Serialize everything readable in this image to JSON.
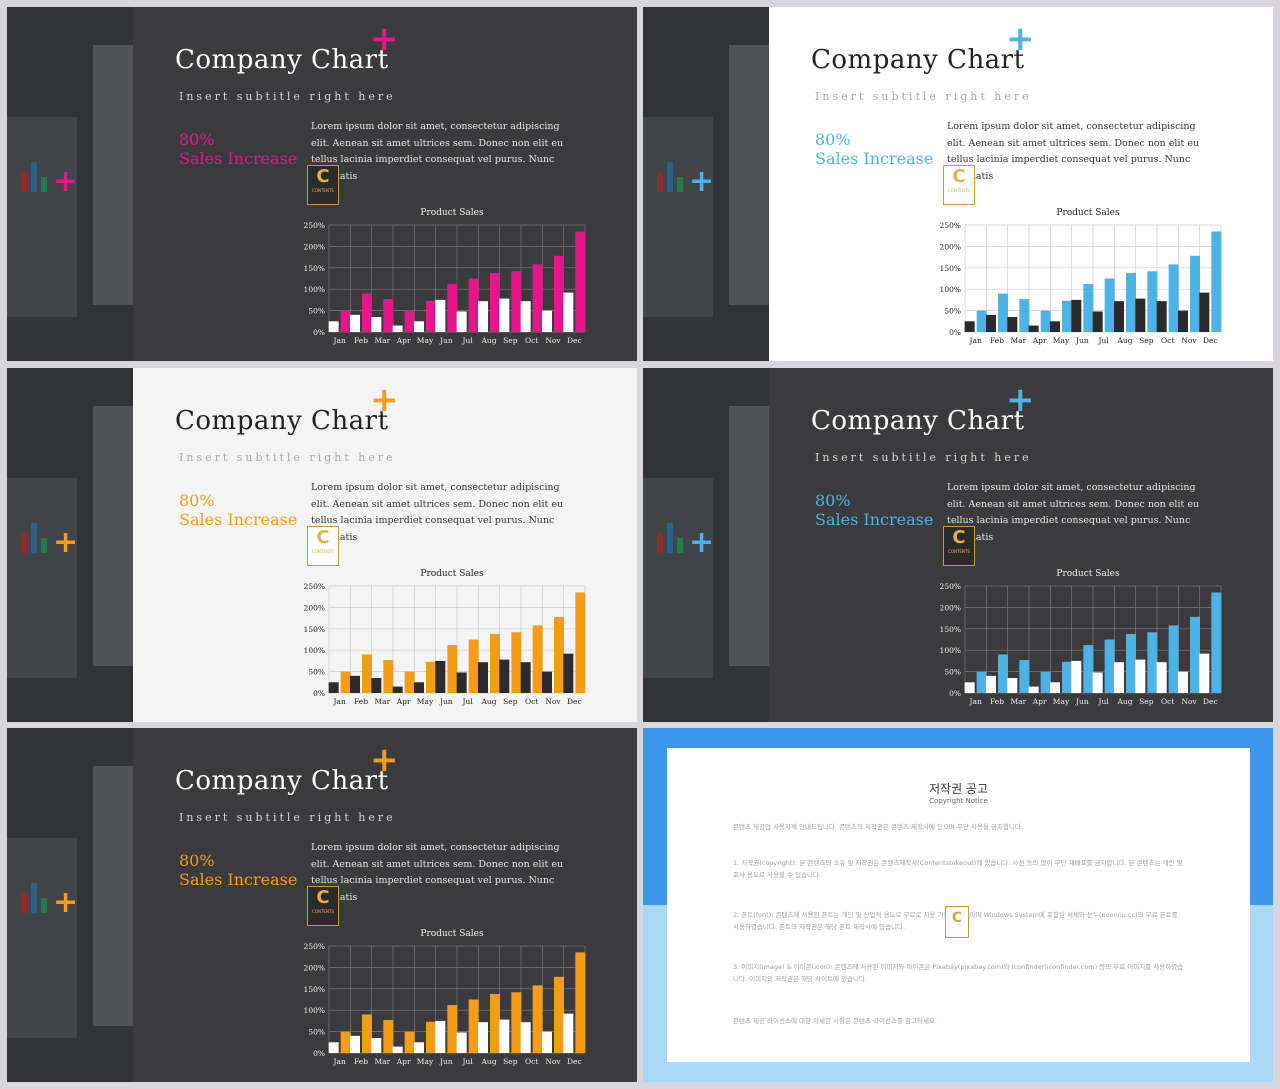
{
  "slides": [
    {
      "theme": "dark",
      "accent": "#e5168a",
      "title": "Company Chart",
      "subtitle": "Insert subtitle right here",
      "stat_value": "80%",
      "stat_label": "Sales Increase",
      "body": "Lorem ipsum dolor sit amet, consectetur adipiscing elit. Aenean sit amet ultrices sem. Donec non elit eu tellus lacinia imperdiet consequat vel purus. Nunc venenatis",
      "logo_letter": "C",
      "logo_text": "CONTENTS"
    },
    {
      "theme": "white",
      "accent": "#4db3e6",
      "title": "Company Chart",
      "subtitle": "Insert subtitle right here",
      "stat_value": "80%",
      "stat_label": "Sales Increase",
      "body": "Lorem ipsum dolor sit amet, consectetur adipiscing elit. Aenean sit amet ultrices sem. Donec non elit eu tellus lacinia imperdiet consequat vel purus. Nunc venenatis",
      "logo_letter": "C",
      "logo_text": "CONTENTS"
    },
    {
      "theme": "offwhite",
      "accent": "#f39c1a",
      "title": "Company Chart",
      "subtitle": "Insert subtitle right here",
      "stat_value": "80%",
      "stat_label": "Sales Increase",
      "body": "Lorem ipsum dolor sit amet, consectetur adipiscing elit. Aenean sit amet ultrices sem. Donec non elit eu tellus lacinia imperdiet consequat vel purus. Nunc venenatis",
      "logo_letter": "C",
      "logo_text": "CONTENTS"
    },
    {
      "theme": "dark",
      "accent": "#4db3e6",
      "title": "Company Chart",
      "subtitle": "Insert subtitle right here",
      "stat_value": "80%",
      "stat_label": "Sales Increase",
      "body": "Lorem ipsum dolor sit amet, consectetur adipiscing elit. Aenean sit amet ultrices sem. Donec non elit eu tellus lacinia imperdiet consequat vel purus. Nunc venenatis",
      "logo_letter": "C",
      "logo_text": "CONTENTS"
    },
    {
      "theme": "dark",
      "accent": "#f39c1a",
      "title": "Company Chart",
      "subtitle": "Insert subtitle right here",
      "stat_value": "80%",
      "stat_label": "Sales Increase",
      "body": "Lorem ipsum dolor sit amet, consectetur adipiscing elit. Aenean sit amet ultrices sem. Donec non elit eu tellus lacinia imperdiet consequat vel purus. Nunc venenatis",
      "logo_letter": "C",
      "logo_text": "CONTENTS"
    }
  ],
  "chart_data": {
    "type": "bar",
    "title": "Product Sales",
    "categories": [
      "Jan",
      "Feb",
      "Mar",
      "Apr",
      "May",
      "Jun",
      "Jul",
      "Aug",
      "Sep",
      "Oct",
      "Nov",
      "Dec"
    ],
    "series": [
      {
        "values": [
          25,
          40,
          35,
          15,
          25,
          75,
          48,
          72,
          78,
          72,
          50,
          92
        ]
      },
      {
        "values": [
          50,
          90,
          77,
          50,
          73,
          112,
          125,
          138,
          142,
          158,
          178,
          235
        ]
      }
    ],
    "ylim": [
      0,
      250
    ],
    "yticks": [
      "0%",
      "50%",
      "100%",
      "150%",
      "200%",
      "250%"
    ],
    "grid": true,
    "legend": "none"
  },
  "notice": {
    "title": "저작권 공고",
    "subtitle": "Copyright Notice",
    "paragraphs": [
      "콘텐츠 제공업 사용자께 안내드립니다. 콘텐츠의 저작권은 콘텐츠 제작사에 있으며 무단 사용을 금지합니다.",
      "1. 저작권(copyright): 본 콘텐츠의 소유 및 저작권은 콘텐츠제작사(Contentstokeout)에 있습니다. 사전 동의 없이 무단 재배포를 금지합니다. 본 콘텐츠는 개인 및 회사 용도로 사용할 수 있습니다.",
      "2. 폰트(font): 콘텐츠에 사용된 폰트는 개인 및 상업적 용도로 무료로 사용 가능한 폰트이며 Windows System에 포함된 서체와 눈누(noonnu.cc)의 무료 폰트를 사용하였습니다. 폰트의 저작권은 해당 폰트 제작사에 있습니다.",
      "3. 이미지(image) & 아이콘(icon): 콘텐츠에 사용된 이미지와 아이콘은 Pixabay(pixabay.com)와 Iconfinder(iconfinder.com) 등의 무료 이미지를 사용하였습니다. 이미지의 저작권은 해당 사이트에 있습니다.",
      "콘텐츠 제공 라이선스에 대한 자세한 사항은 콘텐츠 라이선스를 참고하세요."
    ],
    "logo_letter": "C"
  }
}
